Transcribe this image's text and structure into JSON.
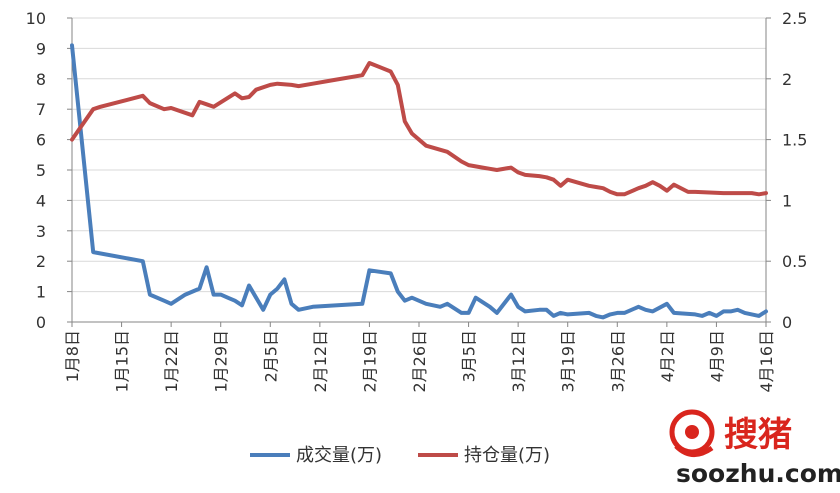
{
  "colors": {
    "series_volume": "#4a7ebb",
    "series_open_interest": "#be4b48",
    "grid": "#d9d9d9",
    "axis": "#868686",
    "watermark_red": "#d9251d"
  },
  "watermark": {
    "brand": "搜猪",
    "url": "soozhu.com",
    "icon": "pig-logo-icon"
  },
  "chart_data": {
    "type": "line",
    "title": "",
    "x_tick_labels": [
      "1月8日",
      "1月15日",
      "1月22日",
      "1月29日",
      "2月5日",
      "2月12日",
      "2月19日",
      "2月26日",
      "3月5日",
      "3月12日",
      "3月19日",
      "3月26日",
      "4月2日",
      "4月9日",
      "4月16日"
    ],
    "x_range": [
      0,
      98
    ],
    "x_tick_index": [
      0,
      7,
      14,
      21,
      28,
      35,
      42,
      49,
      56,
      63,
      70,
      77,
      84,
      91,
      98
    ],
    "grid": true,
    "legend_position": "bottom",
    "y_left": {
      "ticks": [
        "0",
        "1",
        "2",
        "3",
        "4",
        "5",
        "6",
        "7",
        "8",
        "9",
        "10"
      ],
      "range": [
        0,
        10
      ]
    },
    "y_right": {
      "ticks": [
        "0",
        "0.5",
        "1",
        "1.5",
        "2",
        "2.5"
      ],
      "range": [
        0,
        2.5
      ]
    },
    "series": [
      {
        "name": "成交量(万)",
        "axis": "left",
        "x": [
          0,
          3,
          10,
          11,
          13,
          14,
          16,
          17,
          18,
          19,
          20,
          21,
          22,
          23,
          24,
          25,
          27,
          28,
          29,
          30,
          31,
          32,
          33,
          34,
          41,
          42,
          45,
          46,
          47,
          48,
          50,
          52,
          53,
          55,
          56,
          57,
          59,
          60,
          62,
          63,
          64,
          66,
          67,
          68,
          69,
          70,
          73,
          74,
          75,
          76,
          77,
          78,
          80,
          81,
          82,
          84,
          85,
          88,
          89,
          90,
          91,
          92,
          93,
          94,
          95,
          97,
          98
        ],
        "y": [
          9.1,
          2.3,
          2.0,
          0.9,
          0.7,
          0.6,
          0.9,
          1.0,
          1.1,
          1.8,
          0.9,
          0.9,
          0.8,
          0.7,
          0.55,
          1.2,
          0.4,
          0.9,
          1.1,
          1.4,
          0.6,
          0.4,
          0.45,
          0.5,
          0.6,
          1.7,
          1.6,
          1.0,
          0.7,
          0.8,
          0.6,
          0.5,
          0.6,
          0.3,
          0.3,
          0.8,
          0.5,
          0.3,
          0.9,
          0.5,
          0.35,
          0.4,
          0.4,
          0.2,
          0.3,
          0.25,
          0.3,
          0.2,
          0.15,
          0.25,
          0.3,
          0.3,
          0.5,
          0.4,
          0.35,
          0.6,
          0.3,
          0.25,
          0.2,
          0.3,
          0.2,
          0.35,
          0.35,
          0.4,
          0.3,
          0.2,
          0.35
        ]
      },
      {
        "name": "持仓量(万)",
        "axis": "right",
        "x": [
          0,
          3,
          4,
          10,
          11,
          13,
          14,
          17,
          18,
          19,
          20,
          23,
          24,
          25,
          26,
          28,
          29,
          31,
          32,
          34,
          37,
          41,
          42,
          45,
          46,
          47,
          48,
          50,
          53,
          55,
          56,
          58,
          59,
          60,
          62,
          63,
          64,
          66,
          67,
          68,
          69,
          70,
          73,
          74,
          75,
          76,
          77,
          78,
          80,
          81,
          82,
          83,
          84,
          85,
          87,
          88,
          92,
          96,
          97,
          98
        ],
        "y": [
          1.5,
          1.75,
          1.77,
          1.86,
          1.8,
          1.75,
          1.76,
          1.7,
          1.81,
          1.79,
          1.77,
          1.88,
          1.84,
          1.85,
          1.91,
          1.95,
          1.96,
          1.95,
          1.94,
          1.96,
          1.99,
          2.03,
          2.13,
          2.06,
          1.95,
          1.65,
          1.55,
          1.45,
          1.4,
          1.32,
          1.29,
          1.27,
          1.26,
          1.25,
          1.27,
          1.23,
          1.21,
          1.2,
          1.19,
          1.17,
          1.12,
          1.17,
          1.12,
          1.11,
          1.1,
          1.07,
          1.05,
          1.05,
          1.1,
          1.12,
          1.15,
          1.12,
          1.08,
          1.13,
          1.07,
          1.07,
          1.06,
          1.06,
          1.05,
          1.06
        ]
      }
    ]
  }
}
